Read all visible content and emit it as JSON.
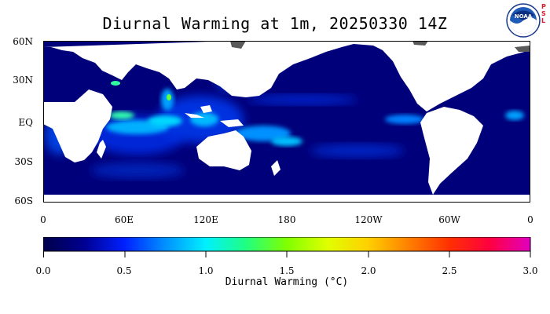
{
  "title": "Diurnal Warming at 1m, 20250330 14Z",
  "logo": {
    "text": "NOAA",
    "side_text": [
      "P",
      "S",
      "L"
    ]
  },
  "map": {
    "type": "global sea surface diurnal warming field",
    "lat_labels": [
      "60N",
      "30N",
      "EQ",
      "30S",
      "60S"
    ],
    "lon_labels": [
      "0",
      "60E",
      "120E",
      "180",
      "120W",
      "60W",
      "0"
    ],
    "land_color": "#ffffff",
    "ice_color": "#5a5a5a",
    "ocean_base_color": "#00007a"
  },
  "colorbar": {
    "label": "Diurnal Warming (°C)",
    "ticks": [
      "0.0",
      "0.5",
      "1.0",
      "1.5",
      "2.0",
      "2.5",
      "3.0"
    ],
    "range": [
      0.0,
      3.0
    ],
    "colors": [
      "#00004a",
      "#000090",
      "#0020ff",
      "#0090ff",
      "#00f0ff",
      "#20ff80",
      "#80ff00",
      "#e0ff00",
      "#ffd000",
      "#ff8000",
      "#ff3000",
      "#ff0040",
      "#e000c0"
    ]
  }
}
